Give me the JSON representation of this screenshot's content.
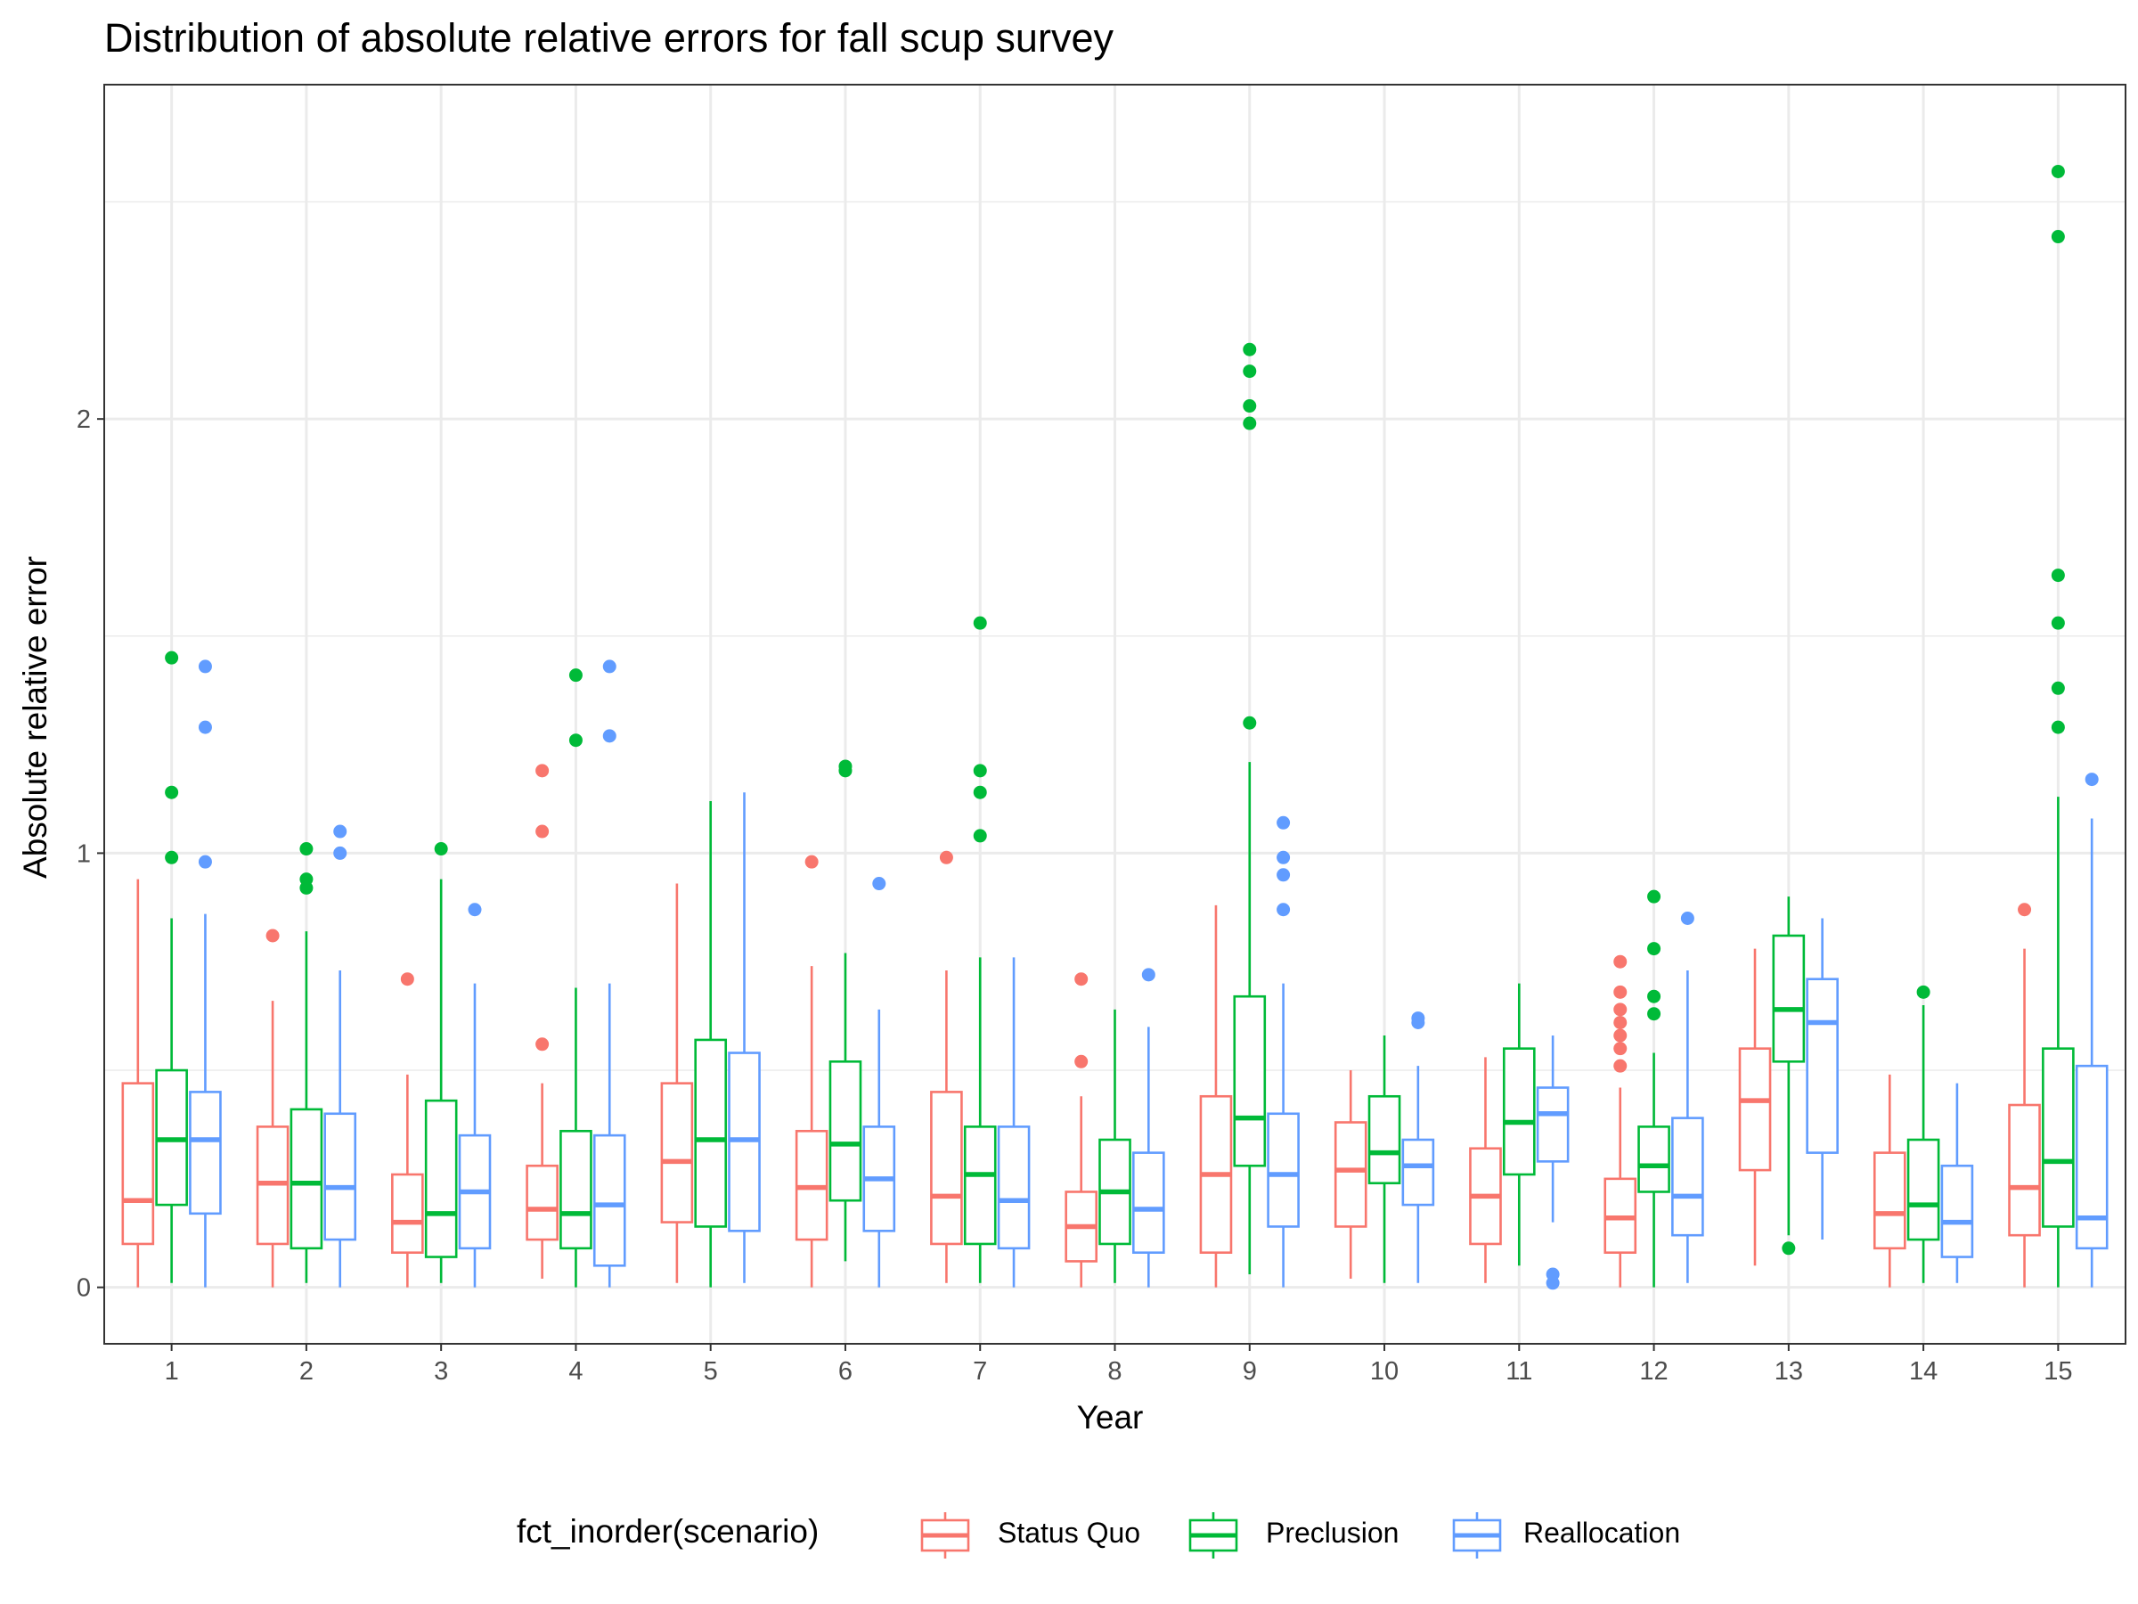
{
  "chart_data": {
    "type": "boxplot",
    "title": "Distribution of absolute relative errors for fall scup survey",
    "xlabel": "Year",
    "ylabel": "Absolute relative error",
    "categories": [
      "1",
      "2",
      "3",
      "4",
      "5",
      "6",
      "7",
      "8",
      "9",
      "10",
      "11",
      "12",
      "13",
      "14",
      "15"
    ],
    "yticks": [
      0,
      1,
      2
    ],
    "ylim": [
      -0.13,
      2.77
    ],
    "grid": true,
    "legend": {
      "title": "fct_inorder(scenario)",
      "placement": "bottom"
    },
    "series": [
      {
        "name": "Status Quo",
        "color": "#F8766D",
        "boxes": [
          {
            "min": 0.0,
            "q1": 0.1,
            "median": 0.2,
            "q3": 0.47,
            "max": 0.94,
            "outliers": []
          },
          {
            "min": 0.0,
            "q1": 0.1,
            "median": 0.24,
            "q3": 0.37,
            "max": 0.66,
            "outliers": [
              0.81
            ]
          },
          {
            "min": 0.0,
            "q1": 0.08,
            "median": 0.15,
            "q3": 0.26,
            "max": 0.49,
            "outliers": [
              0.71
            ]
          },
          {
            "min": 0.02,
            "q1": 0.11,
            "median": 0.18,
            "q3": 0.28,
            "max": 0.47,
            "outliers": [
              0.56,
              1.05,
              1.19
            ]
          },
          {
            "min": 0.01,
            "q1": 0.15,
            "median": 0.29,
            "q3": 0.47,
            "max": 0.93,
            "outliers": []
          },
          {
            "min": 0.0,
            "q1": 0.11,
            "median": 0.23,
            "q3": 0.36,
            "max": 0.74,
            "outliers": [
              0.98
            ]
          },
          {
            "min": 0.01,
            "q1": 0.1,
            "median": 0.21,
            "q3": 0.45,
            "max": 0.73,
            "outliers": [
              0.99
            ]
          },
          {
            "min": 0.0,
            "q1": 0.06,
            "median": 0.14,
            "q3": 0.22,
            "max": 0.44,
            "outliers": [
              0.52,
              0.71
            ]
          },
          {
            "min": 0.0,
            "q1": 0.08,
            "median": 0.26,
            "q3": 0.44,
            "max": 0.88,
            "outliers": []
          },
          {
            "min": 0.02,
            "q1": 0.14,
            "median": 0.27,
            "q3": 0.38,
            "max": 0.5,
            "outliers": []
          },
          {
            "min": 0.01,
            "q1": 0.1,
            "median": 0.21,
            "q3": 0.32,
            "max": 0.53,
            "outliers": []
          },
          {
            "min": 0.0,
            "q1": 0.08,
            "median": 0.16,
            "q3": 0.25,
            "max": 0.46,
            "outliers": [
              0.51,
              0.55,
              0.58,
              0.61,
              0.64,
              0.68,
              0.75
            ]
          },
          {
            "min": 0.05,
            "q1": 0.27,
            "median": 0.43,
            "q3": 0.55,
            "max": 0.78,
            "outliers": []
          },
          {
            "min": 0.0,
            "q1": 0.09,
            "median": 0.17,
            "q3": 0.31,
            "max": 0.49,
            "outliers": []
          },
          {
            "min": 0.0,
            "q1": 0.12,
            "median": 0.23,
            "q3": 0.42,
            "max": 0.78,
            "outliers": [
              0.87
            ]
          }
        ]
      },
      {
        "name": "Preclusion",
        "color": "#00BA38",
        "boxes": [
          {
            "min": 0.01,
            "q1": 0.19,
            "median": 0.34,
            "q3": 0.5,
            "max": 0.85,
            "outliers": [
              0.99,
              1.14,
              1.45
            ]
          },
          {
            "min": 0.01,
            "q1": 0.09,
            "median": 0.24,
            "q3": 0.41,
            "max": 0.82,
            "outliers": [
              0.92,
              0.94,
              1.01
            ]
          },
          {
            "min": 0.01,
            "q1": 0.07,
            "median": 0.17,
            "q3": 0.43,
            "max": 0.94,
            "outliers": [
              1.01
            ]
          },
          {
            "min": 0.0,
            "q1": 0.09,
            "median": 0.17,
            "q3": 0.36,
            "max": 0.69,
            "outliers": [
              1.26,
              1.41
            ]
          },
          {
            "min": 0.0,
            "q1": 0.14,
            "median": 0.34,
            "q3": 0.57,
            "max": 1.12,
            "outliers": []
          },
          {
            "min": 0.06,
            "q1": 0.2,
            "median": 0.33,
            "q3": 0.52,
            "max": 0.77,
            "outliers": [
              1.19,
              1.2
            ]
          },
          {
            "min": 0.01,
            "q1": 0.1,
            "median": 0.26,
            "q3": 0.37,
            "max": 0.76,
            "outliers": [
              1.04,
              1.14,
              1.19,
              1.53
            ]
          },
          {
            "min": 0.01,
            "q1": 0.1,
            "median": 0.22,
            "q3": 0.34,
            "max": 0.64,
            "outliers": []
          },
          {
            "min": 0.03,
            "q1": 0.28,
            "median": 0.39,
            "q3": 0.67,
            "max": 1.21,
            "outliers": [
              1.3,
              1.99,
              2.03,
              2.11,
              2.16
            ]
          },
          {
            "min": 0.01,
            "q1": 0.24,
            "median": 0.31,
            "q3": 0.44,
            "max": 0.58,
            "outliers": []
          },
          {
            "min": 0.05,
            "q1": 0.26,
            "median": 0.38,
            "q3": 0.55,
            "max": 0.7,
            "outliers": []
          },
          {
            "min": 0.0,
            "q1": 0.22,
            "median": 0.28,
            "q3": 0.37,
            "max": 0.54,
            "outliers": [
              0.63,
              0.67,
              0.78,
              0.9
            ]
          },
          {
            "min": 0.12,
            "q1": 0.52,
            "median": 0.64,
            "q3": 0.81,
            "max": 0.9,
            "outliers": [
              0.09
            ]
          },
          {
            "min": 0.01,
            "q1": 0.11,
            "median": 0.19,
            "q3": 0.34,
            "max": 0.65,
            "outliers": [
              0.68
            ]
          },
          {
            "min": 0.0,
            "q1": 0.14,
            "median": 0.29,
            "q3": 0.55,
            "max": 1.13,
            "outliers": [
              1.29,
              1.38,
              1.53,
              1.64,
              2.42,
              2.57
            ]
          }
        ]
      },
      {
        "name": "Reallocation",
        "color": "#619CFF",
        "boxes": [
          {
            "min": 0.0,
            "q1": 0.17,
            "median": 0.34,
            "q3": 0.45,
            "max": 0.86,
            "outliers": [
              0.98,
              1.29,
              1.43
            ]
          },
          {
            "min": 0.0,
            "q1": 0.11,
            "median": 0.23,
            "q3": 0.4,
            "max": 0.73,
            "outliers": [
              1.0,
              1.05
            ]
          },
          {
            "min": 0.0,
            "q1": 0.09,
            "median": 0.22,
            "q3": 0.35,
            "max": 0.7,
            "outliers": [
              0.87
            ]
          },
          {
            "min": 0.0,
            "q1": 0.05,
            "median": 0.19,
            "q3": 0.35,
            "max": 0.7,
            "outliers": [
              1.27,
              1.43
            ]
          },
          {
            "min": 0.01,
            "q1": 0.13,
            "median": 0.34,
            "q3": 0.54,
            "max": 1.14,
            "outliers": []
          },
          {
            "min": 0.0,
            "q1": 0.13,
            "median": 0.25,
            "q3": 0.37,
            "max": 0.64,
            "outliers": [
              0.93
            ]
          },
          {
            "min": 0.0,
            "q1": 0.09,
            "median": 0.2,
            "q3": 0.37,
            "max": 0.76,
            "outliers": []
          },
          {
            "min": 0.0,
            "q1": 0.08,
            "median": 0.18,
            "q3": 0.31,
            "max": 0.6,
            "outliers": [
              0.72
            ]
          },
          {
            "min": 0.0,
            "q1": 0.14,
            "median": 0.26,
            "q3": 0.4,
            "max": 0.7,
            "outliers": [
              0.87,
              0.95,
              0.99,
              1.07
            ]
          },
          {
            "min": 0.01,
            "q1": 0.19,
            "median": 0.28,
            "q3": 0.34,
            "max": 0.51,
            "outliers": [
              0.61,
              0.62
            ]
          },
          {
            "min": 0.15,
            "q1": 0.29,
            "median": 0.4,
            "q3": 0.46,
            "max": 0.58,
            "outliers": [
              0.01,
              0.03
            ]
          },
          {
            "min": 0.01,
            "q1": 0.12,
            "median": 0.21,
            "q3": 0.39,
            "max": 0.73,
            "outliers": [
              0.85
            ]
          },
          {
            "min": 0.11,
            "q1": 0.31,
            "median": 0.61,
            "q3": 0.71,
            "max": 0.85,
            "outliers": []
          },
          {
            "min": 0.01,
            "q1": 0.07,
            "median": 0.15,
            "q3": 0.28,
            "max": 0.47,
            "outliers": []
          },
          {
            "min": 0.0,
            "q1": 0.09,
            "median": 0.16,
            "q3": 0.51,
            "max": 1.08,
            "outliers": [
              1.17
            ]
          }
        ]
      }
    ]
  }
}
